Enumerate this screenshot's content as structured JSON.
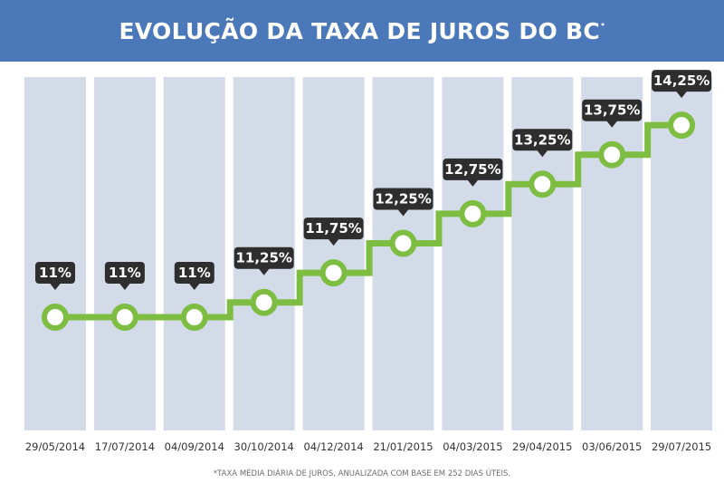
{
  "title": "EVOLUÇÃO DA TAXA DE JUROS DO BC",
  "title_mark": "*",
  "footnote": "*TAXA MÉDIA DIÁRIA DE JUROS, ANUALIZADA COM BASE EM 252 DIAS ÚTEIS.",
  "colors": {
    "header": "#4a78b8",
    "column": "#d3dbe8",
    "line": "#7cbd42",
    "label_bg": "#2e2e2e",
    "label_text": "#ffffff",
    "tick_text": "#333333"
  },
  "chart_data": {
    "type": "line",
    "step": true,
    "categories": [
      "29/05/2014",
      "17/07/2014",
      "04/09/2014",
      "30/10/2014",
      "04/12/2014",
      "21/01/2015",
      "04/03/2015",
      "29/04/2015",
      "03/06/2015",
      "29/07/2015"
    ],
    "values": [
      11,
      11,
      11,
      11.25,
      11.75,
      12.25,
      12.75,
      13.25,
      13.75,
      14.25
    ],
    "data_labels": [
      "11%",
      "11%",
      "11%",
      "11,25%",
      "11,75%",
      "12,25%",
      "12,75%",
      "13,25%",
      "13,75%",
      "14,25%"
    ],
    "ylabel": "",
    "xlabel": "",
    "grid": false,
    "legend": "none"
  }
}
